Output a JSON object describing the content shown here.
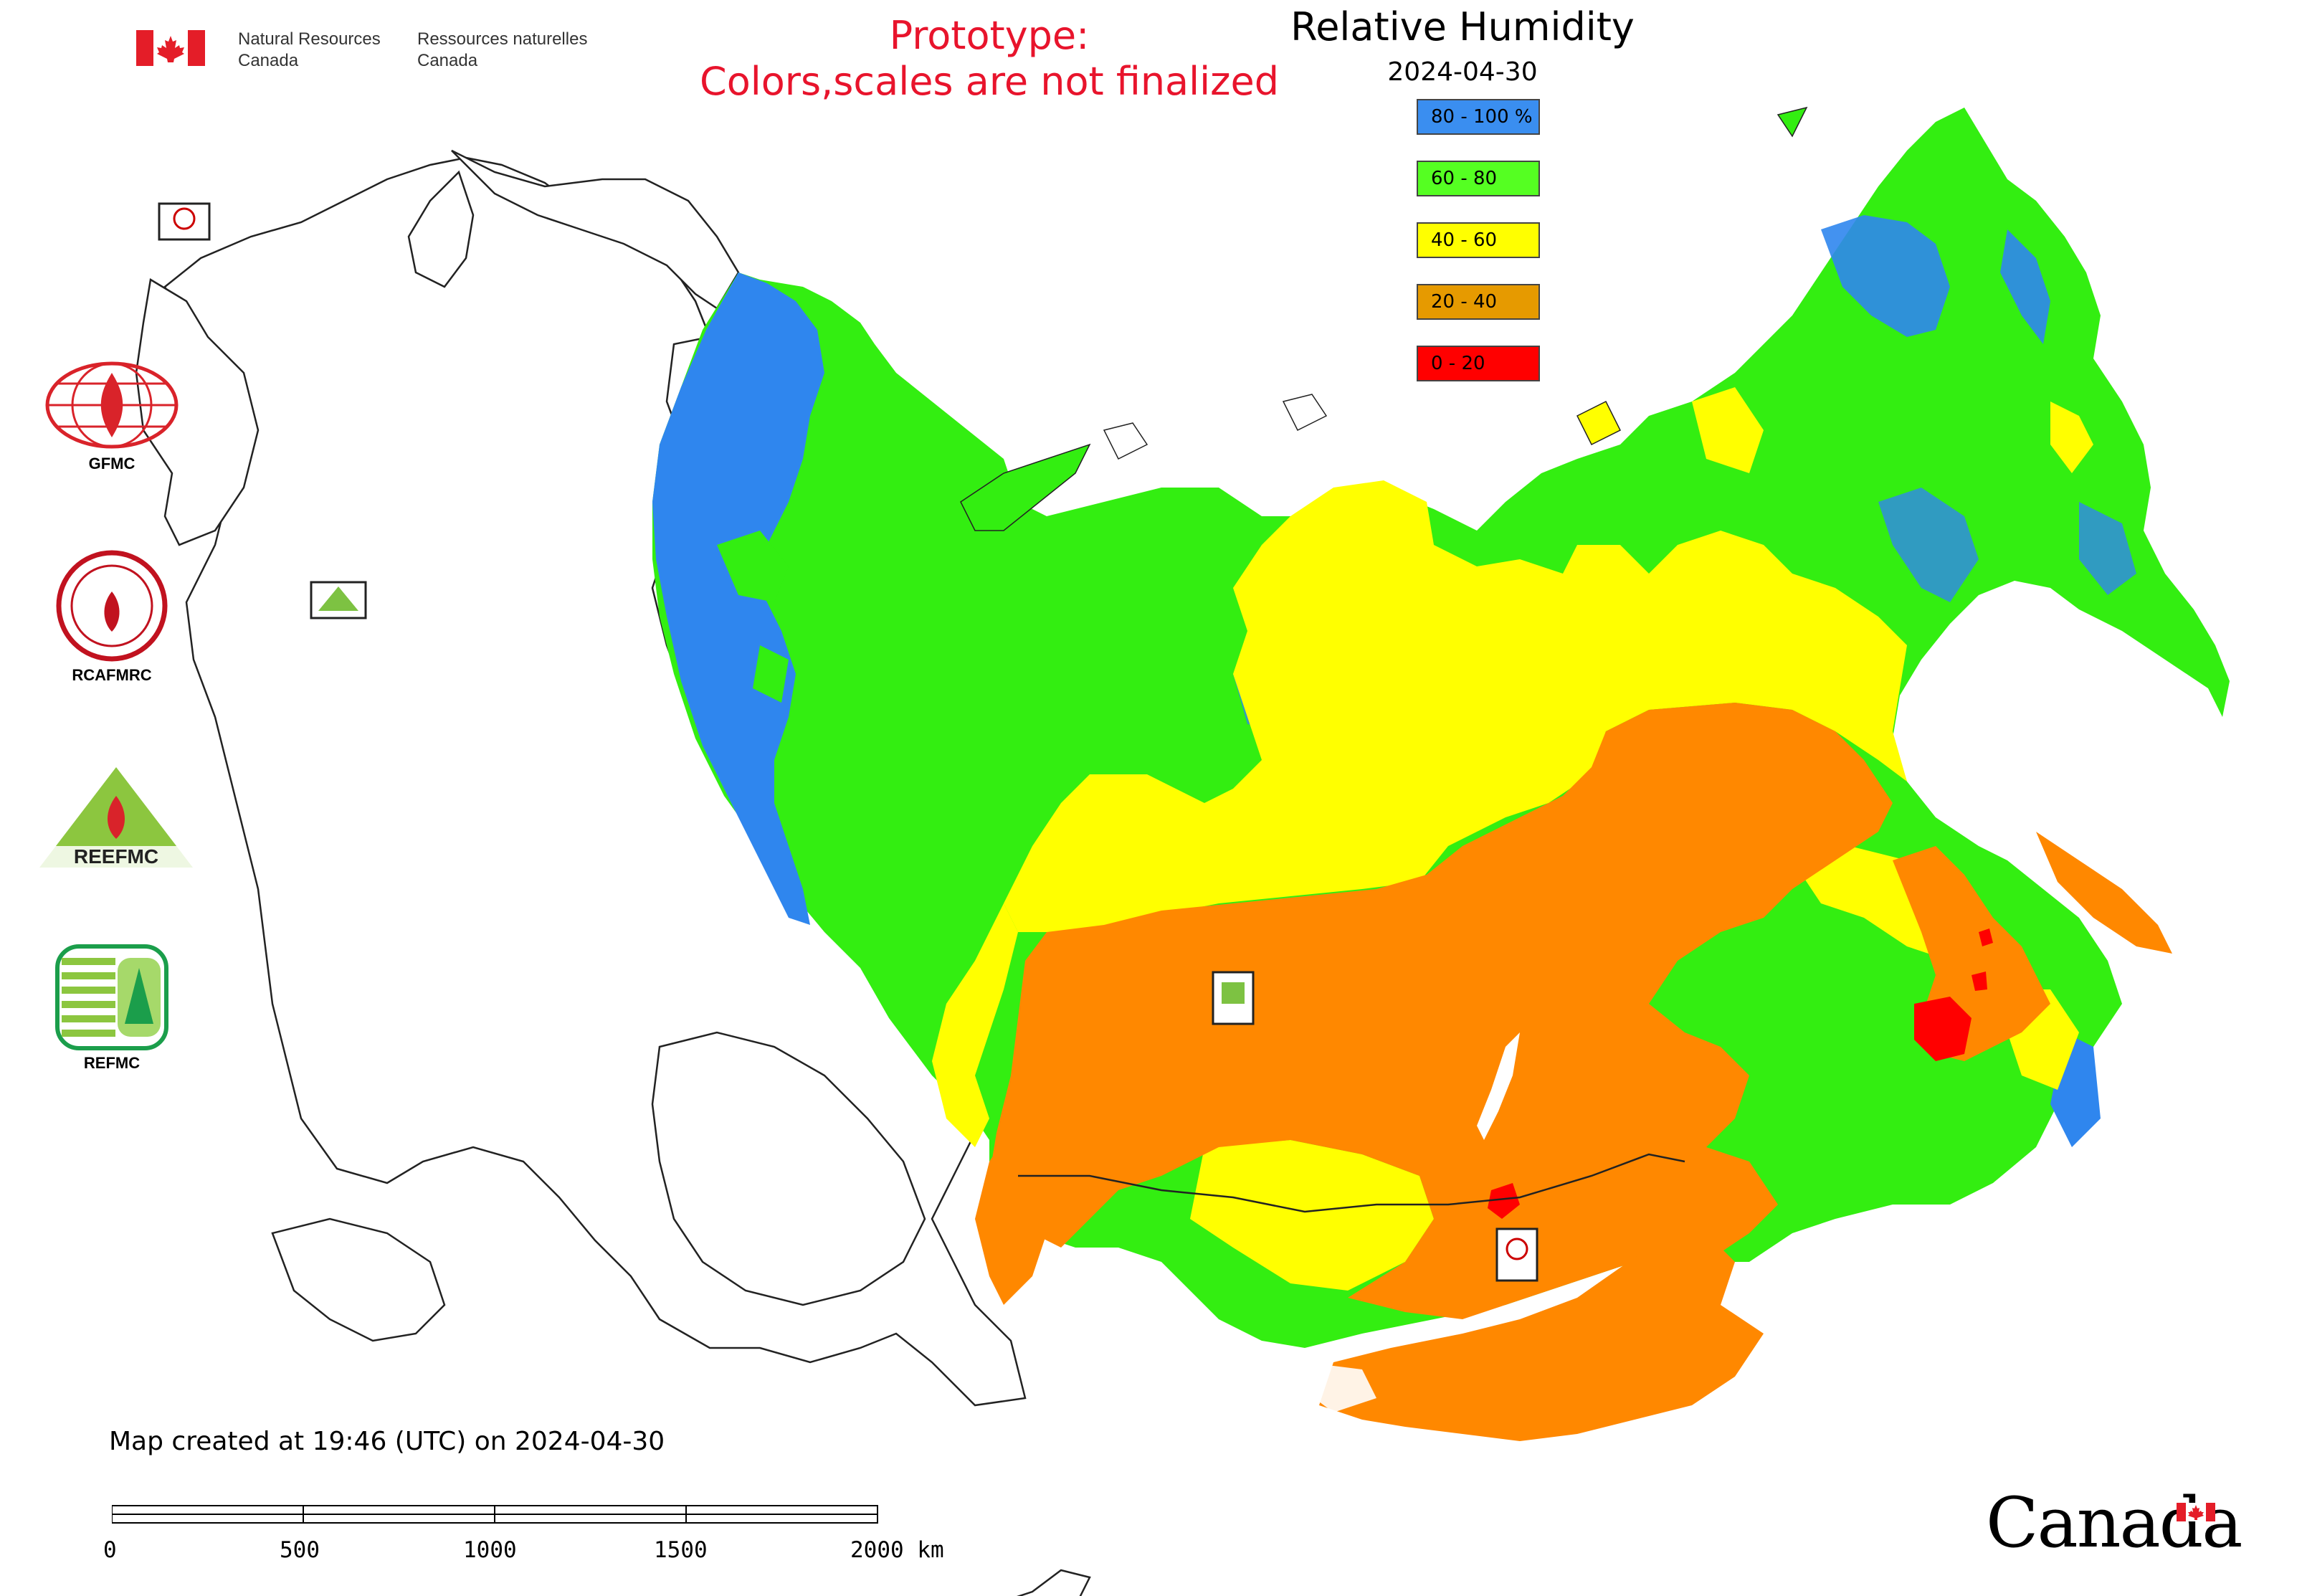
{
  "header": {
    "agency_en": "Natural Resources\nCanada",
    "agency_fr": "Ressources naturelles\nCanada",
    "prototype_note_line1": "Prototype:",
    "prototype_note_line2": "Colors,scales are not finalized"
  },
  "map": {
    "title": "Relative Humidity",
    "date": "2024-04-30",
    "legend": [
      {
        "label": "80 - 100 %",
        "color": "#3a8ef0"
      },
      {
        "label": "60 - 80",
        "color": "#55ff22"
      },
      {
        "label": "40 - 60",
        "color": "#ffff00"
      },
      {
        "label": "20 - 40",
        "color": "#e69a00"
      },
      {
        "label": "0 - 20",
        "color": "#ff0000"
      }
    ],
    "colors": {
      "very_humid": "#2f86ee",
      "humid": "#33ee11",
      "moderate": "#ffff00",
      "dry": "#ff8800",
      "very_dry": "#ff0000"
    }
  },
  "sidebar_logos": [
    {
      "label": "GFMC",
      "icon": "gfmc-logo-icon"
    },
    {
      "label": "RCAFMRC",
      "icon": "rcafmrc-logo-icon"
    },
    {
      "label": "",
      "icon": "reefmc-logo-icon",
      "logo_text": "REEFMC"
    },
    {
      "label": "REFMC",
      "icon": "refmc-logo-icon"
    }
  ],
  "footer": {
    "created": "Map created at 19:46 (UTC) on 2024-04-30",
    "scale_labels": [
      "0",
      "500",
      "1000",
      "1500",
      "2000 km"
    ],
    "wordmark": "Canada"
  }
}
